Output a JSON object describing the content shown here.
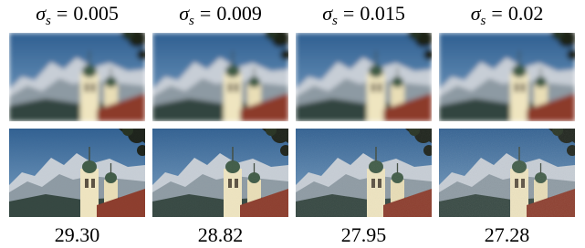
{
  "columns": [
    {
      "symbol": "σ",
      "subscript": "s",
      "relation": "=",
      "value": "0.005",
      "psnr": "29.30"
    },
    {
      "symbol": "σ",
      "subscript": "s",
      "relation": "=",
      "value": "0.009",
      "psnr": "28.82"
    },
    {
      "symbol": "σ",
      "subscript": "s",
      "relation": "=",
      "value": "0.015",
      "psnr": "27.95"
    },
    {
      "symbol": "σ",
      "subscript": "s",
      "relation": "=",
      "value": "0.02",
      "psnr": "27.28"
    }
  ]
}
